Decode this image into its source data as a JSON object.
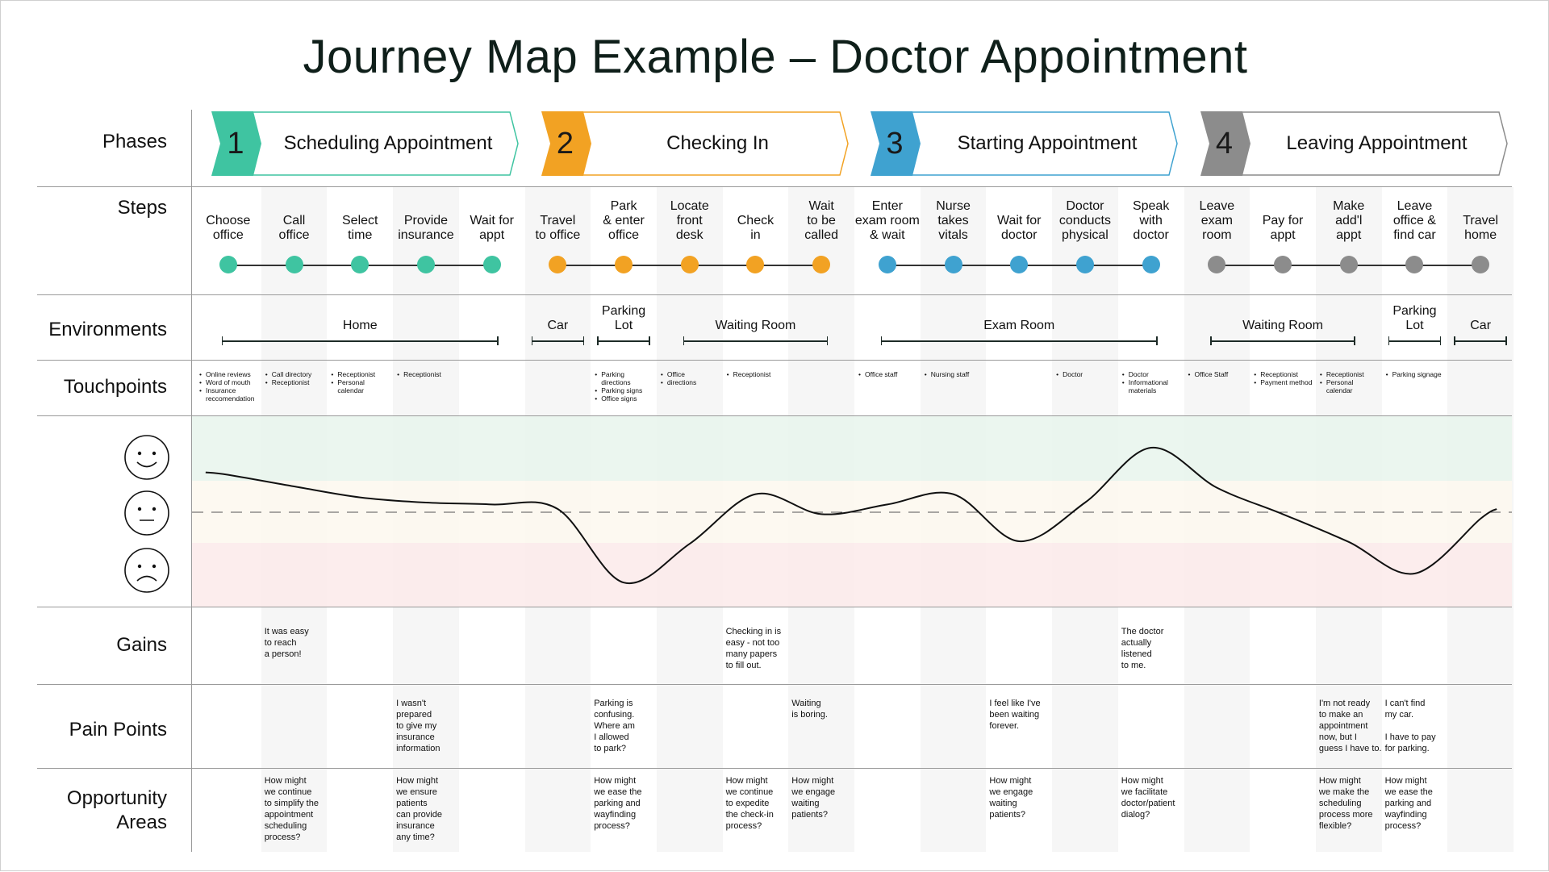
{
  "title": "Journey Map Example – Doctor Appointment",
  "row_labels": {
    "phases": "Phases",
    "steps": "Steps",
    "environments": "Environments",
    "touchpoints": "Touchpoints",
    "gains": "Gains",
    "pain_points": "Pain Points",
    "opportunity_areas": "Opportunity\nAreas"
  },
  "faces": [
    "happy-face-icon",
    "neutral-face-icon",
    "sad-face-icon"
  ],
  "band_colors": {
    "positive": "#e7f4ec",
    "neutral": "#fdf8ef",
    "negative": "#fbeaea"
  },
  "phases": [
    {
      "number": "1",
      "name": "Scheduling Appointment",
      "color": "#3fc4a1"
    },
    {
      "number": "2",
      "name": "Checking In",
      "color": "#f2a223"
    },
    {
      "number": "3",
      "name": "Starting Appointment",
      "color": "#3fa2d0"
    },
    {
      "number": "4",
      "name": "Leaving Appointment",
      "color": "#8c8c8c"
    }
  ],
  "steps": [
    "Choose\noffice",
    "Call\noffice",
    "Select\ntime",
    "Provide\ninsurance",
    "Wait for\nappt",
    "Travel\nto office",
    "Park\n& enter\noffice",
    "Locate\nfront\ndesk",
    "Check\nin",
    "Wait\nto be\ncalled",
    "Enter\nexam room\n& wait",
    "Nurse\ntakes\nvitals",
    "Wait for\ndoctor",
    "Doctor\nconducts\nphysical",
    "Speak\nwith\ndoctor",
    "Leave\nexam\nroom",
    "Pay for\nappt",
    "Make\nadd'l\nappt",
    "Leave\noffice &\nfind car",
    "Travel\nhome"
  ],
  "environments": [
    {
      "label": "Home",
      "start": 0,
      "end": 4
    },
    {
      "label": "Car",
      "start": 5,
      "end": 5
    },
    {
      "label": "Parking\nLot",
      "start": 6,
      "end": 6
    },
    {
      "label": "Waiting Room",
      "start": 7,
      "end": 9
    },
    {
      "label": "Exam Room",
      "start": 10,
      "end": 14
    },
    {
      "label": "Waiting Room",
      "start": 15,
      "end": 17
    },
    {
      "label": "Parking\nLot",
      "start": 18,
      "end": 18
    },
    {
      "label": "Car",
      "start": 19,
      "end": 19
    }
  ],
  "touchpoints": [
    [
      "Online reviews",
      "Word of mouth",
      "Insurance reccomendation"
    ],
    [
      "Call directory",
      "Receptionist"
    ],
    [
      "Receptionist",
      "Personal calendar"
    ],
    [
      "Receptionist"
    ],
    [],
    [],
    [
      "Parking directions",
      "Parking signs",
      "Office signs"
    ],
    [
      "Office",
      "directions"
    ],
    [
      "Receptionist"
    ],
    [],
    [
      "Office staff"
    ],
    [
      "Nursing staff"
    ],
    [],
    [
      "Doctor"
    ],
    [
      "Doctor",
      "Informational materials"
    ],
    [
      "Office Staff"
    ],
    [
      "Receptionist",
      "Payment method"
    ],
    [
      "Receptionist",
      "Personal calendar"
    ],
    [
      "Parking signage"
    ],
    []
  ],
  "emotion_levels": [
    0.58,
    0.4,
    0.23,
    0.15,
    0.12,
    0.05,
    -1.09,
    -0.49,
    0.28,
    -0.03,
    0.12,
    0.28,
    -0.45,
    0.15,
    1.0,
    0.38,
    -0.03,
    -0.46,
    -0.95,
    -0.1
  ],
  "gains": [
    "",
    "It was easy\nto reach\na person!",
    "",
    "",
    "",
    "",
    "",
    "",
    "Checking in is\neasy - not too\nmany papers\nto fill out.",
    "",
    "",
    "",
    "",
    "",
    "The doctor\nactually\nlistened\nto me.",
    "",
    "",
    "",
    "",
    ""
  ],
  "pain_points": [
    "",
    "",
    "",
    "I wasn't\nprepared\nto give my\ninsurance\ninformation",
    "",
    "",
    "Parking is\nconfusing.\nWhere am\nI allowed\nto park?",
    "",
    "",
    "Waiting\nis boring.",
    "",
    "",
    "I feel like I've\nbeen waiting\nforever.",
    "",
    "",
    "",
    "",
    "I'm not ready\nto make an\nappointment\nnow, but I\nguess I have to.",
    "I can't find\nmy car.\n\nI have to pay\nfor parking.",
    ""
  ],
  "opportunity_areas": [
    "",
    "How might\nwe continue\nto simplify the\nappointment\nscheduling\nprocess?",
    "",
    "How might\nwe ensure\npatients\ncan provide\ninsurance\nany time?",
    "",
    "",
    "How might\nwe ease the\nparking and\nwayfinding\nprocess?",
    "",
    "How might\nwe continue\nto expedite\nthe check-in\nprocess?",
    "How might\nwe engage\nwaiting\npatients?",
    "",
    "",
    "How might\nwe engage\nwaiting\npatients?",
    "",
    "How might\nwe facilitate\ndoctor/patient\ndialog?",
    "",
    "",
    "How might\nwe make the\nscheduling\nprocess more\nflexible?",
    "How might\nwe ease the\nparking and\nwayfinding\nprocess?",
    ""
  ]
}
